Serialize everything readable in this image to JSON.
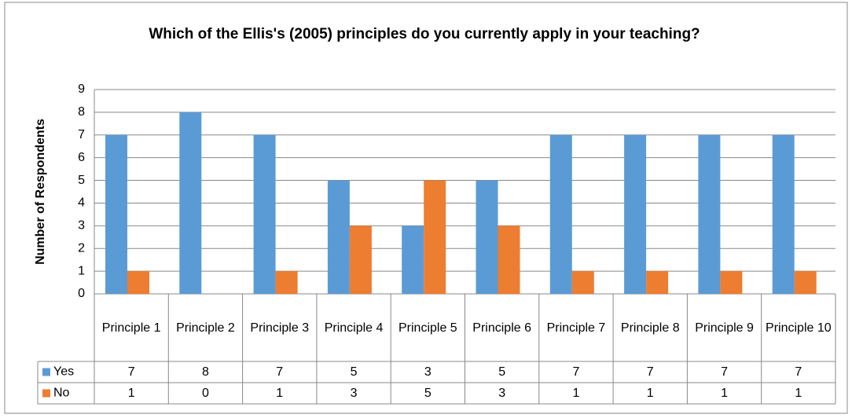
{
  "chart_data": {
    "type": "bar",
    "title": "Which of the Ellis's (2005) principles do you currently apply in your teaching?",
    "y_label": "Number of Respondents",
    "categories": [
      "Principle 1",
      "Principle 2",
      "Principle 3",
      "Principle 4",
      "Principle 5",
      "Principle 6",
      "Principle 7",
      "Principle 8",
      "Principle 9",
      "Principle 10"
    ],
    "series": [
      {
        "name": "Yes",
        "color": "#5b9bd5",
        "values": [
          7,
          8,
          7,
          5,
          3,
          5,
          7,
          7,
          7,
          7
        ]
      },
      {
        "name": "No",
        "color": "#ed7d31",
        "values": [
          1,
          0,
          1,
          3,
          5,
          3,
          1,
          1,
          1,
          1
        ]
      }
    ],
    "ylim": [
      0,
      9
    ],
    "yticks": [
      0,
      1,
      2,
      3,
      4,
      5,
      6,
      7,
      8,
      9
    ],
    "grid": true
  }
}
